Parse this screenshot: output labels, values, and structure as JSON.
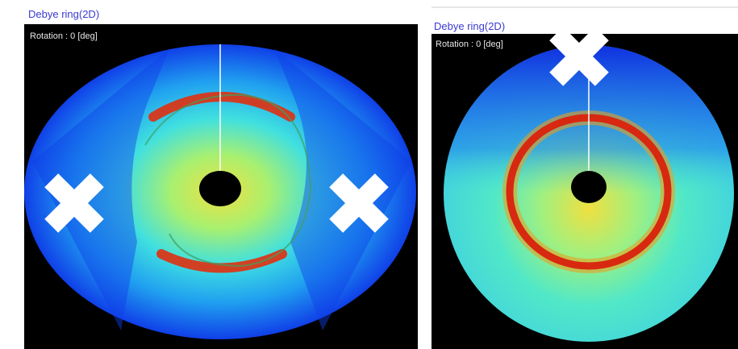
{
  "panels": [
    {
      "title": "Debye ring(2D)",
      "rotation": "Rotation : 0 [deg]"
    },
    {
      "title": "Debye ring(2D)",
      "rotation": "Rotation : 0 [deg]"
    }
  ]
}
